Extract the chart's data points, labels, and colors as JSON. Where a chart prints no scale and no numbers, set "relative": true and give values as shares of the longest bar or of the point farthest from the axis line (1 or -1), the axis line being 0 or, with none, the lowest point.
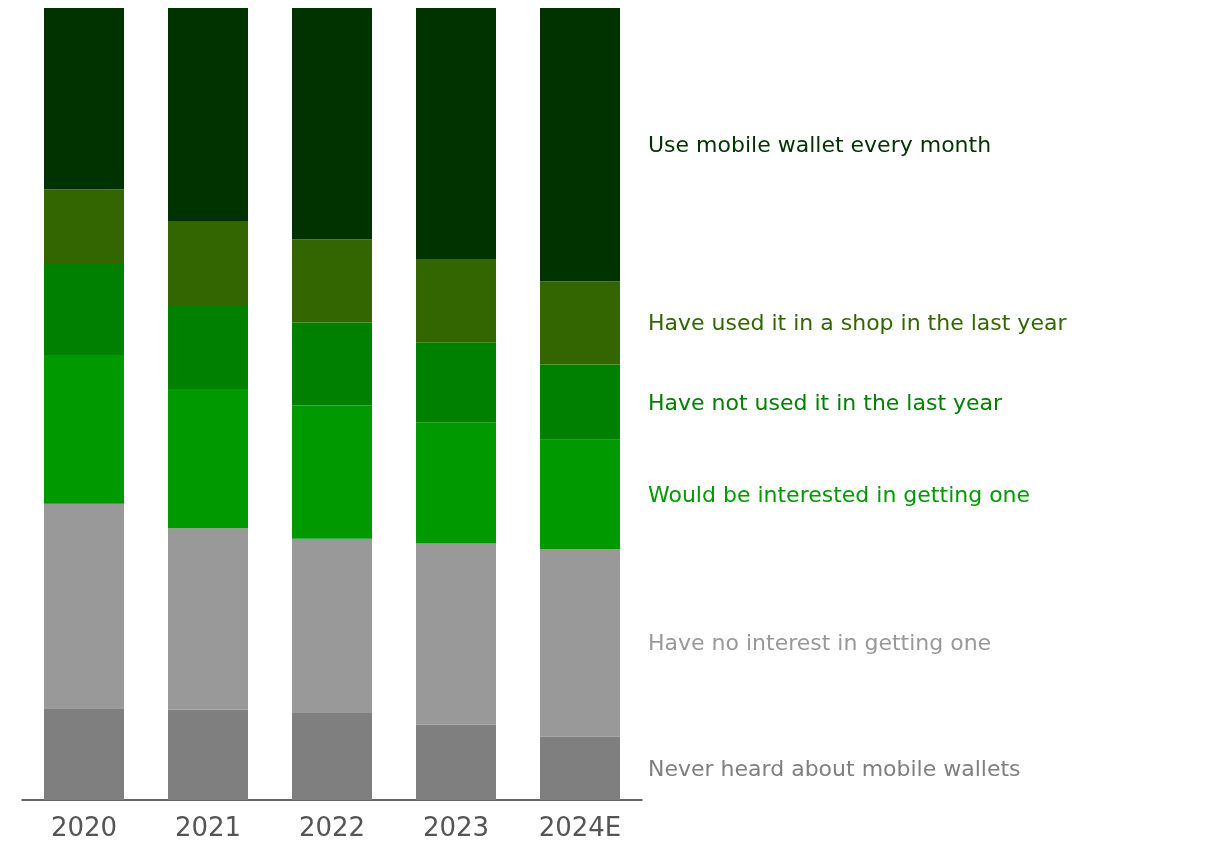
{
  "chart_data": {
    "type": "bar",
    "stacked": true,
    "relative": true,
    "categories": [
      "2020",
      "2021",
      "2022",
      "2023",
      "2024E"
    ],
    "series": [
      {
        "name": "Never heard about mobile wallets",
        "color": "#7f7f7f",
        "values": [
          0.116,
          0.114,
          0.11,
          0.095,
          0.08
        ]
      },
      {
        "name": "Have no interest in getting one",
        "color": "#999999",
        "values": [
          0.258,
          0.229,
          0.22,
          0.229,
          0.237
        ]
      },
      {
        "name": "Would be interested in getting one",
        "color": "#009900",
        "values": [
          0.188,
          0.176,
          0.168,
          0.153,
          0.138
        ]
      },
      {
        "name": "Have not used it in the last year",
        "color": "#008000",
        "values": [
          0.116,
          0.106,
          0.105,
          0.101,
          0.095
        ]
      },
      {
        "name": "Have used it in a shop in the last year",
        "color": "#336600",
        "values": [
          0.093,
          0.105,
          0.105,
          0.105,
          0.105
        ]
      },
      {
        "name": "Use mobile wallet every month",
        "color": "#003300",
        "values": [
          0.229,
          0.27,
          0.292,
          0.317,
          0.345
        ]
      }
    ]
  }
}
